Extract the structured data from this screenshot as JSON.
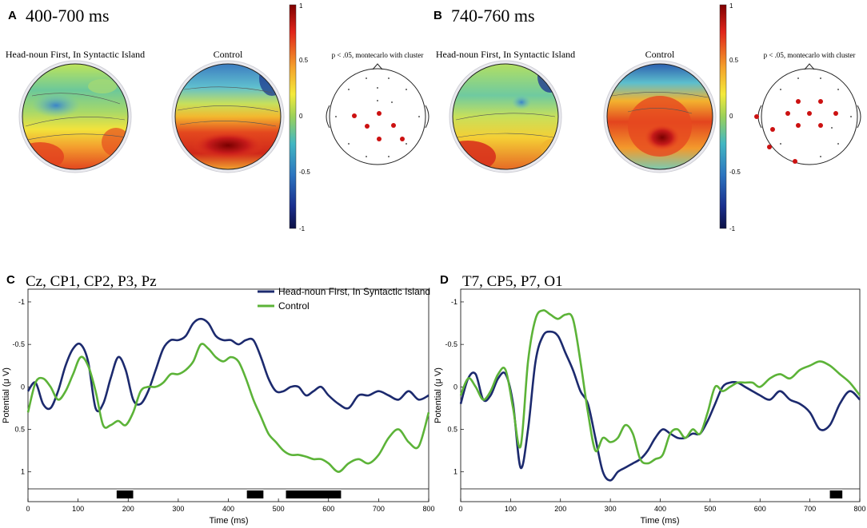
{
  "panels": {
    "A": {
      "letter": "A",
      "time_range": "400-700 ms",
      "map1_title": "Head-noun First, In Syntactic Island",
      "map2_title": "Control",
      "stat_title": "p < .05, montecarlo with cluster"
    },
    "B": {
      "letter": "B",
      "time_range": "740-760 ms",
      "map1_title": "Head-noun First, In Syntactic Island",
      "map2_title": "Control",
      "stat_title": "p < .05, montecarlo with cluster"
    }
  },
  "colorbar": {
    "ticks": [
      "1",
      "0.5",
      "0",
      "-0.5",
      "-1"
    ]
  },
  "colors": {
    "series1": "#1c2a6e",
    "series2": "#5cb338",
    "significant": "#000000",
    "electrode": "#cc1111"
  },
  "chart_data": [
    {
      "type": "line",
      "panel_letter": "C",
      "title": "Cz, CP1, CP2, P3, Pz",
      "xlabel": "Time (ms)",
      "ylabel": "Potential (μ V)",
      "xlim": [
        0,
        800
      ],
      "ylim": [
        -1.15,
        1.2
      ],
      "y_inverted": true,
      "x_ticks": [
        "0",
        "100",
        "200",
        "300",
        "400",
        "500",
        "600",
        "700",
        "800"
      ],
      "y_ticks": [
        "-1",
        "-0.5",
        "0",
        "0.5",
        "1"
      ],
      "legend": [
        "Head-noun First, In Syntactic Island",
        "Control"
      ],
      "series": [
        {
          "name": "Head-noun First, In Syntactic Island",
          "x": [
            0,
            15,
            30,
            45,
            60,
            75,
            90,
            105,
            120,
            135,
            150,
            165,
            180,
            195,
            210,
            225,
            240,
            255,
            270,
            285,
            300,
            315,
            330,
            345,
            360,
            375,
            390,
            405,
            420,
            435,
            450,
            465,
            480,
            495,
            510,
            525,
            540,
            555,
            570,
            585,
            600,
            620,
            640,
            660,
            680,
            700,
            720,
            740,
            760,
            780,
            800
          ],
          "values": [
            0.05,
            -0.05,
            0.2,
            0.25,
            0.05,
            -0.25,
            -0.45,
            -0.5,
            -0.3,
            0.25,
            0.2,
            -0.1,
            -0.35,
            -0.2,
            0.15,
            0.2,
            0.05,
            -0.2,
            -0.45,
            -0.55,
            -0.55,
            -0.6,
            -0.75,
            -0.8,
            -0.75,
            -0.6,
            -0.55,
            -0.55,
            -0.5,
            -0.55,
            -0.55,
            -0.35,
            -0.1,
            0.05,
            0.05,
            0.0,
            0.0,
            0.1,
            0.05,
            0.0,
            0.1,
            0.2,
            0.25,
            0.1,
            0.1,
            0.05,
            0.1,
            0.15,
            0.05,
            0.15,
            0.1
          ]
        },
        {
          "name": "Control",
          "x": [
            0,
            15,
            30,
            45,
            60,
            75,
            90,
            105,
            120,
            135,
            150,
            165,
            180,
            195,
            210,
            225,
            240,
            255,
            270,
            285,
            300,
            315,
            330,
            345,
            360,
            375,
            390,
            405,
            420,
            435,
            450,
            465,
            480,
            495,
            510,
            525,
            540,
            555,
            570,
            585,
            600,
            620,
            640,
            660,
            680,
            700,
            720,
            740,
            760,
            780,
            800
          ],
          "values": [
            0.3,
            -0.05,
            -0.1,
            0.0,
            0.15,
            0.05,
            -0.15,
            -0.35,
            -0.25,
            0.05,
            0.45,
            0.45,
            0.4,
            0.45,
            0.3,
            0.05,
            0.0,
            0.0,
            -0.05,
            -0.15,
            -0.15,
            -0.2,
            -0.3,
            -0.5,
            -0.45,
            -0.35,
            -0.3,
            -0.35,
            -0.3,
            -0.1,
            0.15,
            0.35,
            0.55,
            0.65,
            0.75,
            0.8,
            0.8,
            0.82,
            0.85,
            0.85,
            0.9,
            1.0,
            0.9,
            0.85,
            0.9,
            0.8,
            0.6,
            0.5,
            0.65,
            0.7,
            0.3
          ]
        }
      ],
      "significant_ranges": [
        [
          177,
          210
        ],
        [
          437,
          470
        ],
        [
          515,
          625
        ]
      ]
    },
    {
      "type": "line",
      "panel_letter": "D",
      "title": "T7, CP5, P7, O1",
      "xlabel": "Time (ms)",
      "ylabel": "Potential (μ V)",
      "xlim": [
        0,
        800
      ],
      "ylim": [
        -1.15,
        1.2
      ],
      "y_inverted": true,
      "x_ticks": [
        "0",
        "100",
        "200",
        "300",
        "400",
        "500",
        "600",
        "700",
        "800"
      ],
      "y_ticks": [
        "-1",
        "-0.5",
        "0",
        "0.5",
        "1"
      ],
      "legend": [],
      "series": [
        {
          "name": "Head-noun First, In Syntactic Island",
          "x": [
            0,
            15,
            30,
            45,
            60,
            75,
            90,
            105,
            120,
            135,
            150,
            165,
            180,
            195,
            210,
            225,
            240,
            255,
            270,
            285,
            300,
            315,
            330,
            345,
            360,
            375,
            390,
            405,
            420,
            435,
            450,
            465,
            480,
            495,
            510,
            525,
            540,
            555,
            570,
            585,
            600,
            620,
            640,
            660,
            680,
            700,
            720,
            740,
            760,
            780,
            800
          ],
          "values": [
            0.2,
            -0.1,
            -0.15,
            0.15,
            0.1,
            -0.1,
            -0.15,
            0.2,
            0.95,
            0.5,
            -0.3,
            -0.6,
            -0.65,
            -0.6,
            -0.4,
            -0.2,
            0.05,
            0.2,
            0.6,
            1.0,
            1.1,
            1.0,
            0.95,
            0.9,
            0.85,
            0.75,
            0.6,
            0.5,
            0.55,
            0.6,
            0.6,
            0.55,
            0.55,
            0.4,
            0.2,
            0.0,
            -0.05,
            -0.05,
            0.0,
            0.05,
            0.1,
            0.15,
            0.05,
            0.15,
            0.2,
            0.3,
            0.5,
            0.45,
            0.2,
            0.05,
            0.15
          ]
        },
        {
          "name": "Control",
          "x": [
            0,
            15,
            30,
            45,
            60,
            75,
            90,
            105,
            120,
            135,
            150,
            165,
            180,
            195,
            210,
            225,
            240,
            255,
            270,
            285,
            300,
            315,
            330,
            345,
            360,
            375,
            390,
            405,
            420,
            435,
            450,
            465,
            480,
            495,
            510,
            525,
            540,
            555,
            570,
            585,
            600,
            620,
            640,
            660,
            680,
            700,
            720,
            740,
            760,
            780,
            800
          ],
          "values": [
            0.1,
            -0.1,
            0.0,
            0.15,
            0.05,
            -0.15,
            -0.2,
            0.25,
            0.7,
            -0.3,
            -0.8,
            -0.9,
            -0.85,
            -0.8,
            -0.85,
            -0.8,
            -0.3,
            0.3,
            0.75,
            0.6,
            0.65,
            0.6,
            0.45,
            0.55,
            0.85,
            0.9,
            0.85,
            0.8,
            0.55,
            0.5,
            0.6,
            0.5,
            0.55,
            0.3,
            0.0,
            0.05,
            0.0,
            -0.05,
            -0.05,
            -0.05,
            0.0,
            -0.1,
            -0.15,
            -0.1,
            -0.2,
            -0.25,
            -0.3,
            -0.25,
            -0.15,
            -0.05,
            0.1
          ]
        }
      ],
      "significant_ranges": [
        [
          740,
          765
        ]
      ]
    }
  ]
}
